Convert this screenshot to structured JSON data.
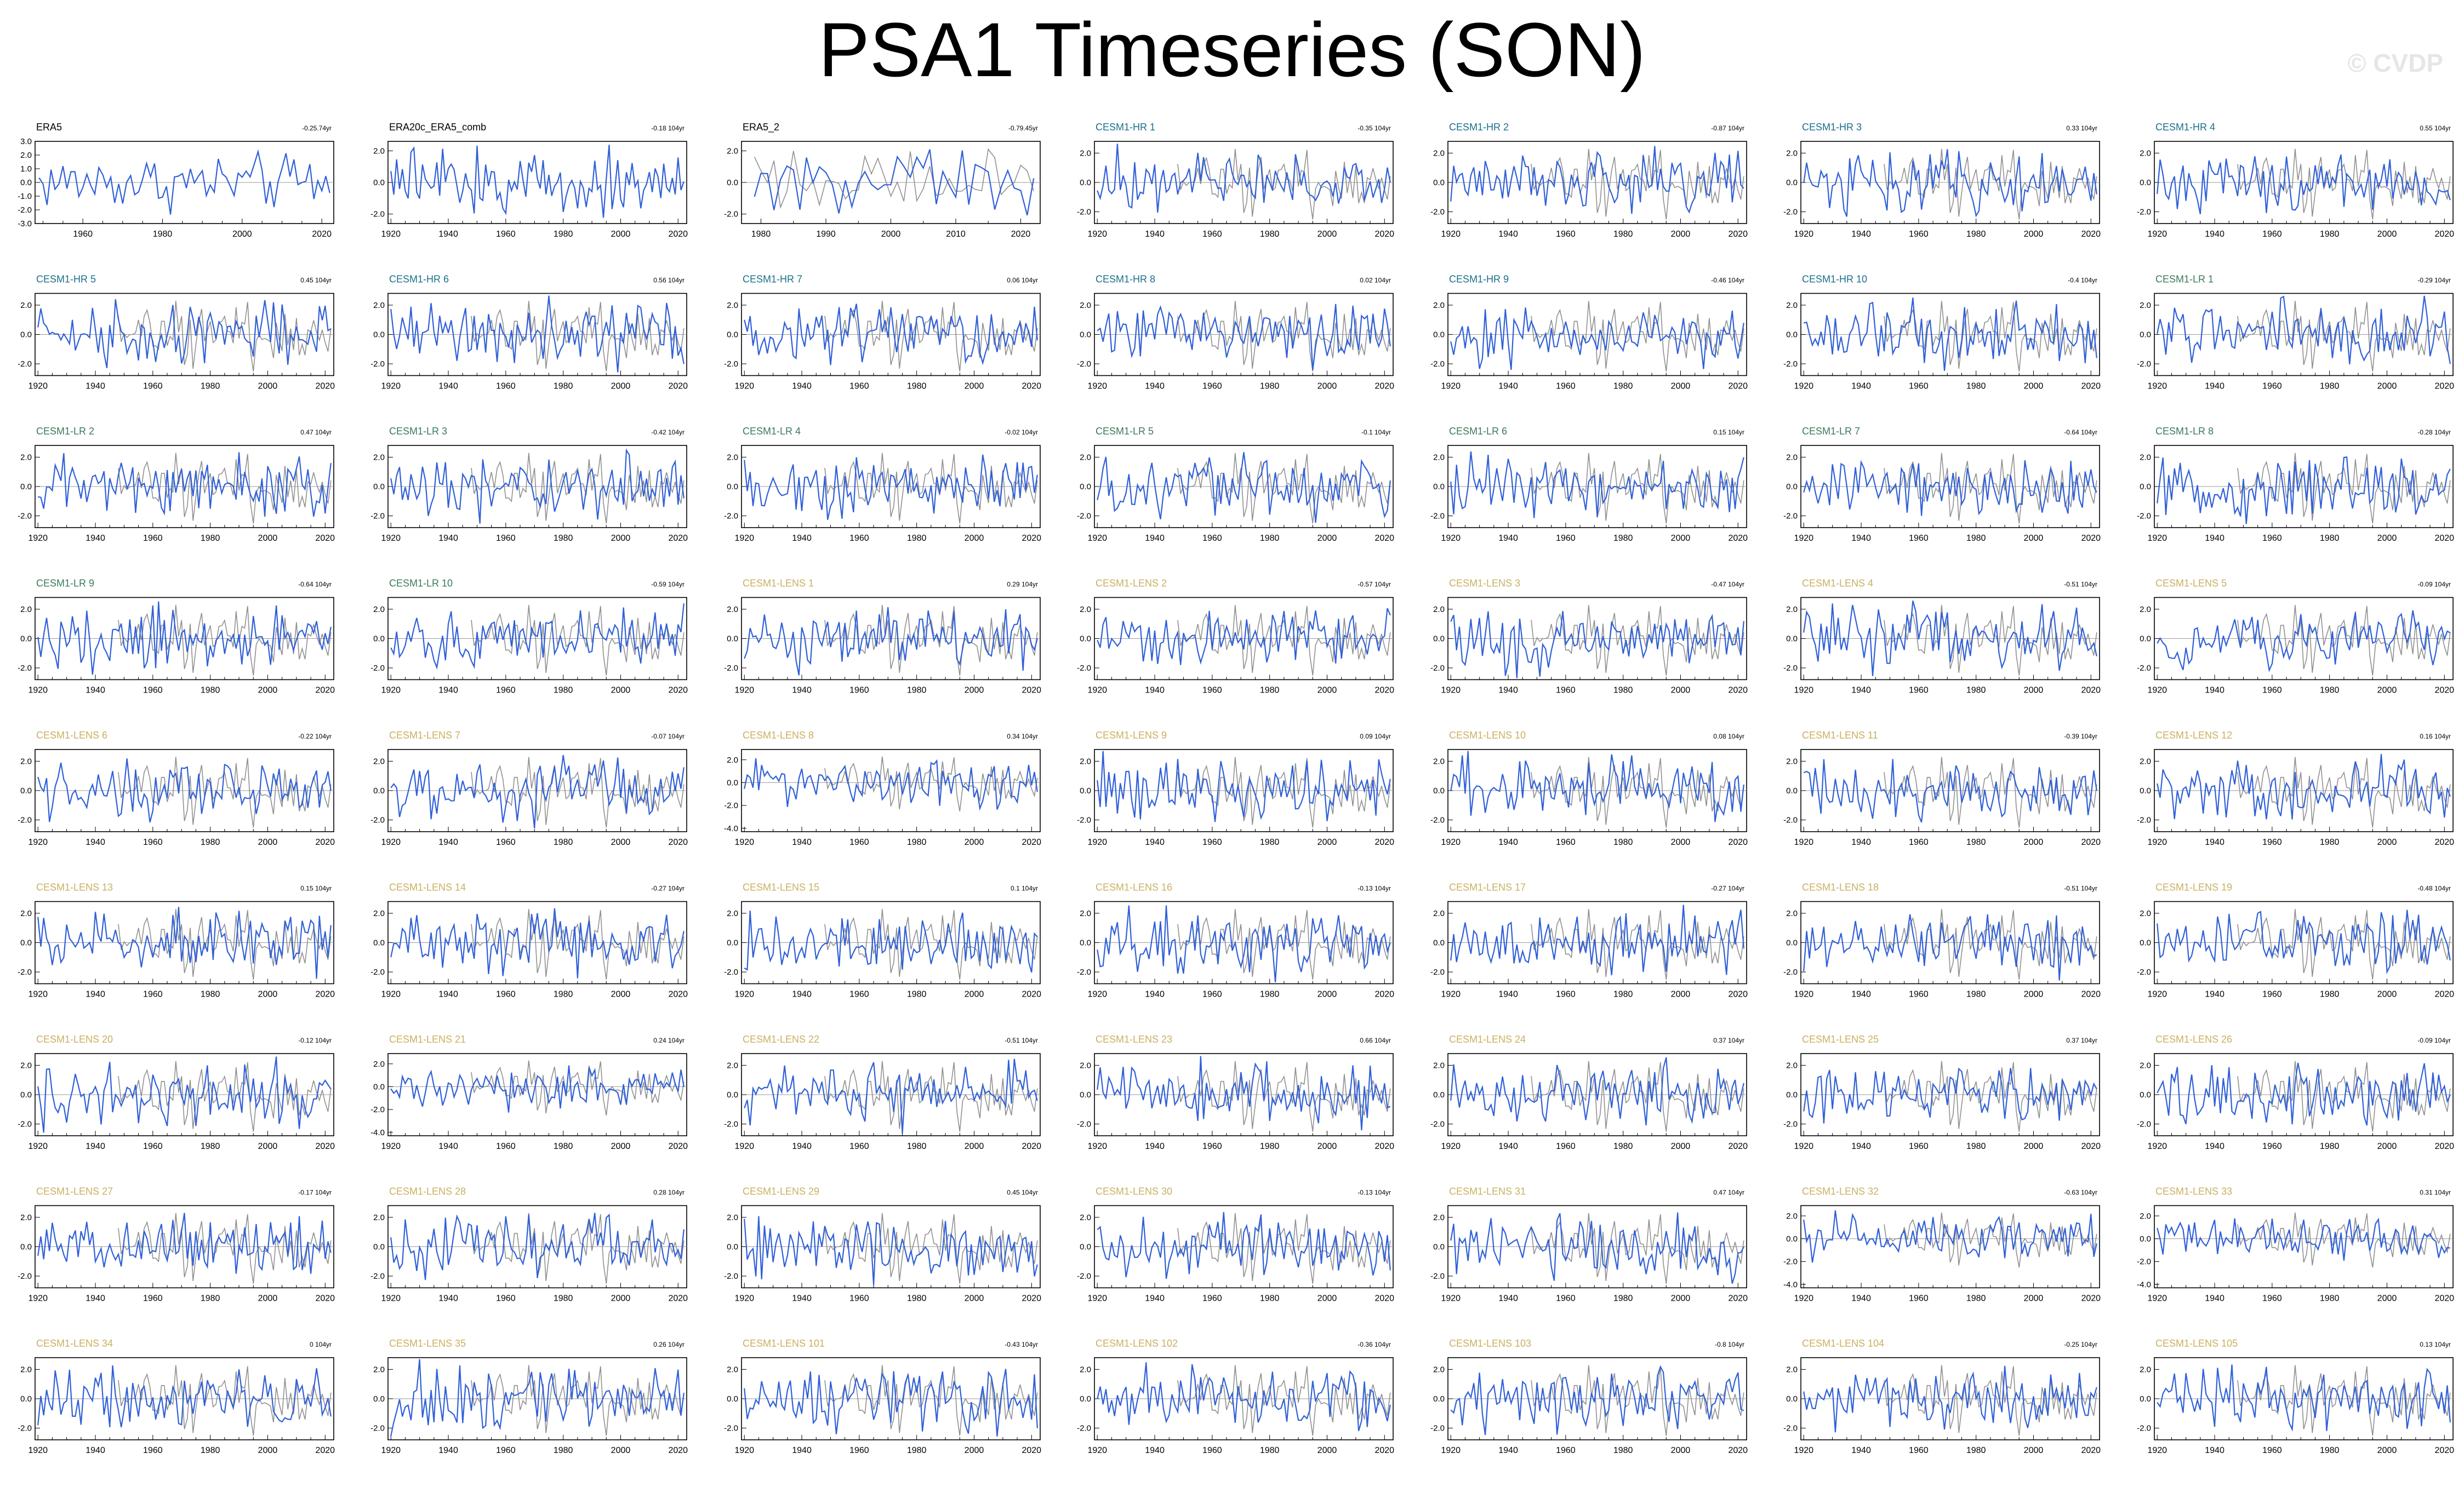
{
  "title": "PSA1 Timeseries (SON)",
  "watermark": "© CVDP",
  "colors": {
    "obs": "#3060d8",
    "model": "#909090",
    "zero": "#999999",
    "label_obs": "#000000",
    "label_hr": "#1a6f8a",
    "label_lr": "#3a7a5a",
    "label_lens": "#c8b060"
  },
  "chart_data": {
    "type": "line",
    "series": [
      {
        "name": "observations"
      },
      {
        "name": "model member"
      }
    ],
    "panels": [
      {
        "label": "ERA5",
        "trend": "-0.25.74yr",
        "group": "obs",
        "xlim": [
          1948,
          2023
        ],
        "xticks": [
          1960,
          1980,
          2000,
          2020
        ],
        "ylim": [
          -3,
          3
        ],
        "yticks": [
          "3.0",
          "2.0",
          "1.0",
          "0.0",
          "-1.0",
          "-2.0",
          "-3.0"
        ],
        "ytick_values": [
          3,
          2,
          1,
          0,
          -1,
          -2,
          -3
        ]
      },
      {
        "label": "ERA20c_ERA5_comb",
        "trend": "-0.18 104yr",
        "group": "obs",
        "xlim": [
          1919,
          2023
        ],
        "xticks": [
          1920,
          1940,
          1960,
          1980,
          2000,
          2020
        ],
        "ylim": [
          -2.6,
          2.6
        ],
        "yticks": [
          "2.0",
          "0.0",
          "-2.0"
        ],
        "ytick_values": [
          2,
          0,
          -2
        ]
      },
      {
        "label": "ERA5_2",
        "trend": "-0.79.45yr",
        "group": "obs",
        "xlim": [
          1977,
          2023
        ],
        "xticks": [
          1980,
          1990,
          2000,
          2010,
          2020
        ],
        "ylim": [
          -2.6,
          2.6
        ],
        "yticks": [
          "2.0",
          "0.0",
          "-2.0"
        ],
        "ytick_values": [
          2,
          0,
          -2
        ]
      },
      {
        "label": "CESM1-HR 1",
        "trend": "-0.35 104yr",
        "group": "hr"
      },
      {
        "label": "CESM1-HR 2",
        "trend": "-0.87 104yr",
        "group": "hr"
      },
      {
        "label": "CESM1-HR 3",
        "trend": "0.33 104yr",
        "group": "hr"
      },
      {
        "label": "CESM1-HR 4",
        "trend": "0.55 104yr",
        "group": "hr"
      },
      {
        "label": "CESM1-HR 5",
        "trend": "0.45 104yr",
        "group": "hr"
      },
      {
        "label": "CESM1-HR 6",
        "trend": "0.56 104yr",
        "group": "hr"
      },
      {
        "label": "CESM1-HR 7",
        "trend": "0.06 104yr",
        "group": "hr"
      },
      {
        "label": "CESM1-HR 8",
        "trend": "0.02 104yr",
        "group": "hr"
      },
      {
        "label": "CESM1-HR 9",
        "trend": "-0.46 104yr",
        "group": "hr"
      },
      {
        "label": "CESM1-HR 10",
        "trend": "-0.4 104yr",
        "group": "hr"
      },
      {
        "label": "CESM1-LR 1",
        "trend": "-0.29 104yr",
        "group": "lr"
      },
      {
        "label": "CESM1-LR 2",
        "trend": "0.47 104yr",
        "group": "lr"
      },
      {
        "label": "CESM1-LR 3",
        "trend": "-0.42 104yr",
        "group": "lr"
      },
      {
        "label": "CESM1-LR 4",
        "trend": "-0.02 104yr",
        "group": "lr"
      },
      {
        "label": "CESM1-LR 5",
        "trend": "-0.1 104yr",
        "group": "lr"
      },
      {
        "label": "CESM1-LR 6",
        "trend": "0.15 104yr",
        "group": "lr"
      },
      {
        "label": "CESM1-LR 7",
        "trend": "-0.64 104yr",
        "group": "lr"
      },
      {
        "label": "CESM1-LR 8",
        "trend": "-0.28 104yr",
        "group": "lr"
      },
      {
        "label": "CESM1-LR 9",
        "trend": "-0.64 104yr",
        "group": "lr"
      },
      {
        "label": "CESM1-LR 10",
        "trend": "-0.59 104yr",
        "group": "lr"
      },
      {
        "label": "CESM1-LENS 1",
        "trend": "0.29 104yr",
        "group": "lens"
      },
      {
        "label": "CESM1-LENS 2",
        "trend": "-0.57 104yr",
        "group": "lens"
      },
      {
        "label": "CESM1-LENS 3",
        "trend": "-0.47 104yr",
        "group": "lens"
      },
      {
        "label": "CESM1-LENS 4",
        "trend": "-0.51 104yr",
        "group": "lens"
      },
      {
        "label": "CESM1-LENS 5",
        "trend": "-0.09 104yr",
        "group": "lens"
      },
      {
        "label": "CESM1-LENS 6",
        "trend": "-0.22 104yr",
        "group": "lens"
      },
      {
        "label": "CESM1-LENS 7",
        "trend": "-0.07 104yr",
        "group": "lens"
      },
      {
        "label": "CESM1-LENS 8",
        "trend": "0.34 104yr",
        "group": "lens",
        "ylim": [
          -4.3,
          2.9
        ],
        "yticks": [
          "2.0",
          "0.0",
          "-2.0",
          "-4.0"
        ],
        "ytick_values": [
          2,
          0,
          -2,
          -4
        ]
      },
      {
        "label": "CESM1-LENS 9",
        "trend": "0.09 104yr",
        "group": "lens"
      },
      {
        "label": "CESM1-LENS 10",
        "trend": "0.08 104yr",
        "group": "lens"
      },
      {
        "label": "CESM1-LENS 11",
        "trend": "-0.39 104yr",
        "group": "lens"
      },
      {
        "label": "CESM1-LENS 12",
        "trend": "0.16 104yr",
        "group": "lens"
      },
      {
        "label": "CESM1-LENS 13",
        "trend": "0.15 104yr",
        "group": "lens"
      },
      {
        "label": "CESM1-LENS 14",
        "trend": "-0.27 104yr",
        "group": "lens"
      },
      {
        "label": "CESM1-LENS 15",
        "trend": "0.1 104yr",
        "group": "lens"
      },
      {
        "label": "CESM1-LENS 16",
        "trend": "-0.13 104yr",
        "group": "lens"
      },
      {
        "label": "CESM1-LENS 17",
        "trend": "-0.27 104yr",
        "group": "lens"
      },
      {
        "label": "CESM1-LENS 18",
        "trend": "-0.51 104yr",
        "group": "lens"
      },
      {
        "label": "CESM1-LENS 19",
        "trend": "-0.48 104yr",
        "group": "lens"
      },
      {
        "label": "CESM1-LENS 20",
        "trend": "-0.12 104yr",
        "group": "lens"
      },
      {
        "label": "CESM1-LENS 21",
        "trend": "0.24 104yr",
        "group": "lens",
        "ylim": [
          -4.3,
          2.9
        ],
        "yticks": [
          "2.0",
          "0.0",
          "-2.0",
          "-4.0"
        ],
        "ytick_values": [
          2,
          0,
          -2,
          -4
        ]
      },
      {
        "label": "CESM1-LENS 22",
        "trend": "-0.51 104yr",
        "group": "lens"
      },
      {
        "label": "CESM1-LENS 23",
        "trend": "0.66 104yr",
        "group": "lens"
      },
      {
        "label": "CESM1-LENS 24",
        "trend": "0.37 104yr",
        "group": "lens"
      },
      {
        "label": "CESM1-LENS 25",
        "trend": "0.37 104yr",
        "group": "lens"
      },
      {
        "label": "CESM1-LENS 26",
        "trend": "-0.09 104yr",
        "group": "lens"
      },
      {
        "label": "CESM1-LENS 27",
        "trend": "-0.17 104yr",
        "group": "lens"
      },
      {
        "label": "CESM1-LENS 28",
        "trend": "0.28 104yr",
        "group": "lens"
      },
      {
        "label": "CESM1-LENS 29",
        "trend": "0.45 104yr",
        "group": "lens"
      },
      {
        "label": "CESM1-LENS 30",
        "trend": "-0.13 104yr",
        "group": "lens"
      },
      {
        "label": "CESM1-LENS 31",
        "trend": "0.47 104yr",
        "group": "lens"
      },
      {
        "label": "CESM1-LENS 32",
        "trend": "-0.63 104yr",
        "group": "lens",
        "ylim": [
          -4.3,
          2.9
        ],
        "yticks": [
          "2.0",
          "0.0",
          "-2.0",
          "-4.0"
        ],
        "ytick_values": [
          2,
          0,
          -2,
          -4
        ]
      },
      {
        "label": "CESM1-LENS 33",
        "trend": "0.31 104yr",
        "group": "lens",
        "ylim": [
          -4.3,
          2.9
        ],
        "yticks": [
          "2.0",
          "0.0",
          "-2.0",
          "-4.0"
        ],
        "ytick_values": [
          2,
          0,
          -2,
          -4
        ]
      },
      {
        "label": "CESM1-LENS 34",
        "trend": "0 104yr",
        "group": "lens"
      },
      {
        "label": "CESM1-LENS 35",
        "trend": "0.26 104yr",
        "group": "lens"
      },
      {
        "label": "CESM1-LENS 101",
        "trend": "-0.43 104yr",
        "group": "lens"
      },
      {
        "label": "CESM1-LENS 102",
        "trend": "-0.36 104yr",
        "group": "lens"
      },
      {
        "label": "CESM1-LENS 103",
        "trend": "-0.8 104yr",
        "group": "lens"
      },
      {
        "label": "CESM1-LENS 104",
        "trend": "-0.25 104yr",
        "group": "lens"
      },
      {
        "label": "CESM1-LENS 105",
        "trend": "0.13 104yr",
        "group": "lens"
      }
    ],
    "defaults": {
      "xlim": [
        1919,
        2023
      ],
      "xticks": [
        1920,
        1940,
        1960,
        1980,
        2000,
        2020
      ],
      "ylim": [
        -2.8,
        2.8
      ],
      "yticks": [
        "2.0",
        "0.0",
        "-2.0"
      ],
      "ytick_values": [
        2,
        0,
        -2
      ],
      "model_years": [
        1920,
        2022
      ],
      "obs_overlay_years": [
        1948,
        2022
      ]
    }
  }
}
